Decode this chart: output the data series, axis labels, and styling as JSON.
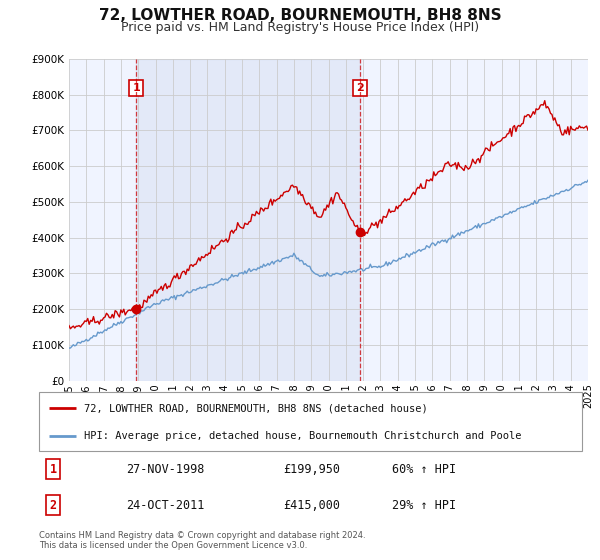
{
  "title": "72, LOWTHER ROAD, BOURNEMOUTH, BH8 8NS",
  "subtitle": "Price paid vs. HM Land Registry's House Price Index (HPI)",
  "title_fontsize": 11,
  "subtitle_fontsize": 9,
  "background_color": "#ffffff",
  "plot_bg_color": "#f0f4ff",
  "grid_color": "#dddddd",
  "ylim": [
    0,
    900000
  ],
  "yticks": [
    0,
    100000,
    200000,
    300000,
    400000,
    500000,
    600000,
    700000,
    800000,
    900000
  ],
  "ytick_labels": [
    "£0",
    "£100K",
    "£200K",
    "£300K",
    "£400K",
    "£500K",
    "£600K",
    "£700K",
    "£800K",
    "£900K"
  ],
  "x_start_year": 1995,
  "x_end_year": 2025,
  "sale1_date": 1998.9,
  "sale1_price": 199950,
  "sale1_label": "1",
  "sale1_date_str": "27-NOV-1998",
  "sale1_price_str": "£199,950",
  "sale1_pct": "60% ↑ HPI",
  "sale2_date": 2011.8,
  "sale2_price": 415000,
  "sale2_label": "2",
  "sale2_date_str": "24-OCT-2011",
  "sale2_price_str": "£415,000",
  "sale2_pct": "29% ↑ HPI",
  "red_line_color": "#cc0000",
  "blue_line_color": "#6699cc",
  "marker_color": "#cc0000",
  "dashed_line_color": "#cc0000",
  "legend_label_red": "72, LOWTHER ROAD, BOURNEMOUTH, BH8 8NS (detached house)",
  "legend_label_blue": "HPI: Average price, detached house, Bournemouth Christchurch and Poole",
  "footer1": "Contains HM Land Registry data © Crown copyright and database right 2024.",
  "footer2": "This data is licensed under the Open Government Licence v3.0."
}
